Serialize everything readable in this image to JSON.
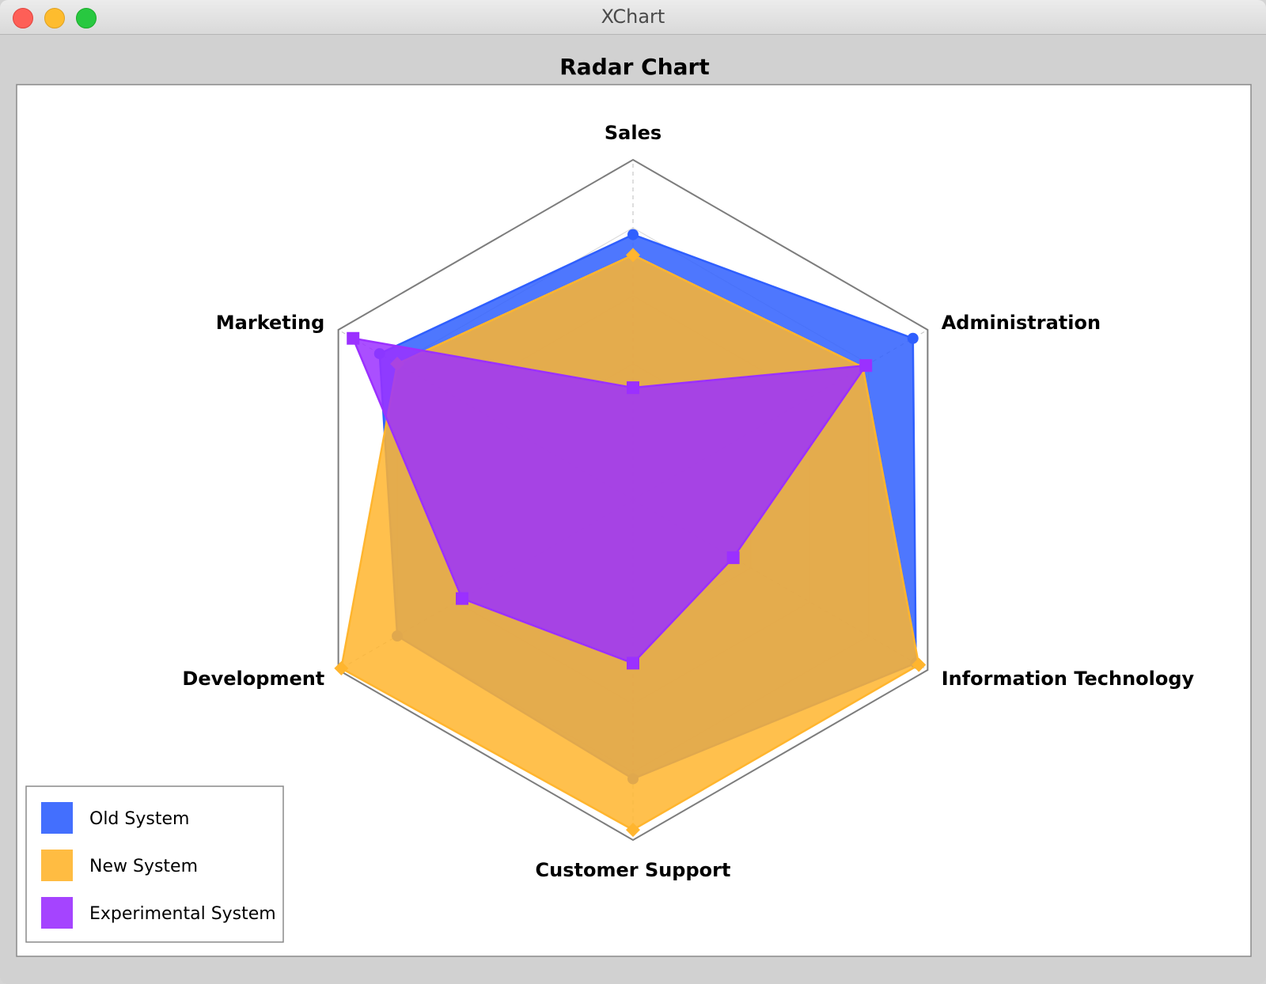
{
  "window": {
    "title": "XChart",
    "buttons": [
      "close",
      "minimize",
      "zoom"
    ]
  },
  "chart_data": {
    "type": "radar",
    "title": "Radar Chart",
    "axes": [
      "Sales",
      "Administration",
      "Information Technology",
      "Customer Support",
      "Development",
      "Marketing"
    ],
    "range": [
      0,
      1
    ],
    "grid_levels": 5,
    "legend_position": "bottom-left",
    "series": [
      {
        "name": "Old System",
        "color": "#2f5ffe",
        "marker": "circle",
        "values": [
          0.78,
          0.95,
          0.96,
          0.82,
          0.8,
          0.86
        ]
      },
      {
        "name": "New System",
        "color": "#ffb52e",
        "marker": "diamond",
        "values": [
          0.72,
          0.78,
          0.97,
          0.97,
          0.99,
          0.8
        ]
      },
      {
        "name": "Experimental System",
        "color": "#9b30ff",
        "marker": "square",
        "values": [
          0.33,
          0.79,
          0.34,
          0.48,
          0.58,
          0.95
        ]
      }
    ]
  }
}
